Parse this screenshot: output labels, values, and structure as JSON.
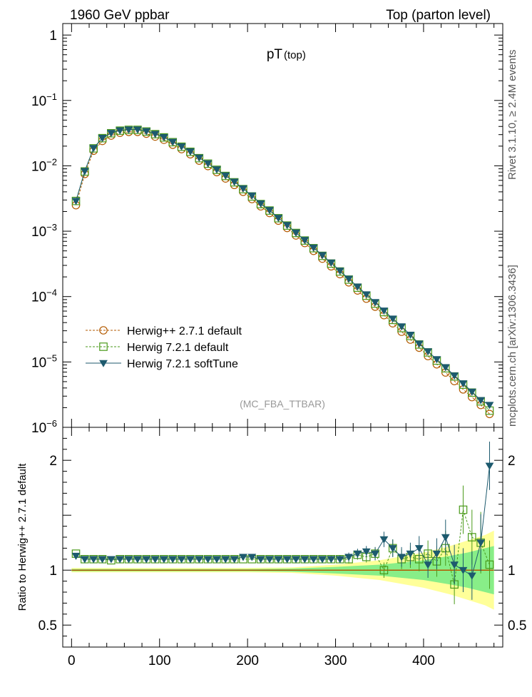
{
  "header": {
    "left": "1960 GeV ppbar",
    "right": "Top (parton level)",
    "side_top": "Rivet 3.1.10, ≥ 2.4M events",
    "side_bottom": "mcplots.cern.ch [arXiv:1306.3436]"
  },
  "chart_data": [
    {
      "type": "scatter",
      "title": "pT",
      "title_sub": "(top)",
      "watermark": "(MC_FBA_TTBAR)",
      "xlim": [
        -10,
        490
      ],
      "ylim": [
        1e-06,
        1.5
      ],
      "yscale": "log",
      "ytick_labels": [
        {
          "value": 1,
          "base": "1",
          "exp": ""
        },
        {
          "value": 0.1,
          "base": "10",
          "exp": "−1"
        },
        {
          "value": 0.01,
          "base": "10",
          "exp": "−2"
        },
        {
          "value": 0.001,
          "base": "10",
          "exp": "−3"
        },
        {
          "value": 0.0001,
          "base": "10",
          "exp": "−4"
        },
        {
          "value": 1e-05,
          "base": "10",
          "exp": "−5"
        },
        {
          "value": 1e-06,
          "base": "10",
          "exp": "−6"
        }
      ],
      "legend_position": "lower-left",
      "series": [
        {
          "name": "Herwig++ 2.7.1 default",
          "color": "#b35a00",
          "marker": "circle-open",
          "line": "dashed",
          "x": [
            5,
            15,
            25,
            35,
            45,
            55,
            65,
            75,
            85,
            95,
            105,
            115,
            125,
            135,
            145,
            155,
            165,
            175,
            185,
            195,
            205,
            215,
            225,
            235,
            245,
            255,
            265,
            275,
            285,
            295,
            305,
            315,
            325,
            335,
            345,
            355,
            365,
            375,
            385,
            395,
            405,
            415,
            425,
            435,
            445,
            455,
            465,
            475
          ],
          "y": [
            0.0025,
            0.0075,
            0.017,
            0.024,
            0.029,
            0.032,
            0.033,
            0.033,
            0.031,
            0.028,
            0.025,
            0.021,
            0.018,
            0.015,
            0.012,
            0.0099,
            0.008,
            0.0064,
            0.0051,
            0.004,
            0.0031,
            0.0024,
            0.0019,
            0.00145,
            0.00112,
            0.00086,
            0.00066,
            0.0005,
            0.00038,
            0.00029,
            0.00022,
            0.000165,
            0.000124,
            9.3e-05,
            7e-05,
            5.2e-05,
            3.9e-05,
            2.9e-05,
            2.2e-05,
            1.65e-05,
            1.23e-05,
            9.2e-06,
            6.9e-06,
            5.1e-06,
            3.8e-06,
            2.9e-06,
            2.2e-06,
            1.6e-06
          ]
        },
        {
          "name": "Herwig 7.2.1 default",
          "color": "#4a9a1a",
          "marker": "square-open",
          "line": "dashed",
          "x": [
            5,
            15,
            25,
            35,
            45,
            55,
            65,
            75,
            85,
            95,
            105,
            115,
            125,
            135,
            145,
            155,
            165,
            175,
            185,
            195,
            205,
            215,
            225,
            235,
            245,
            255,
            265,
            275,
            285,
            295,
            305,
            315,
            325,
            335,
            345,
            355,
            365,
            375,
            385,
            395,
            405,
            415,
            425,
            435,
            445,
            455,
            465,
            475
          ],
          "y": [
            0.0029,
            0.0082,
            0.0185,
            0.0265,
            0.0315,
            0.0345,
            0.0355,
            0.0355,
            0.0335,
            0.0305,
            0.0272,
            0.023,
            0.0196,
            0.0164,
            0.0131,
            0.0108,
            0.0087,
            0.007,
            0.0056,
            0.0044,
            0.0034,
            0.0026,
            0.00207,
            0.00158,
            0.00122,
            0.00094,
            0.00072,
            0.00055,
            0.00042,
            0.00032,
            0.000242,
            0.000182,
            0.000137,
            0.000103,
            7.8e-05,
            5.8e-05,
            4.4e-05,
            3.3e-05,
            2.5e-05,
            1.85e-05,
            1.4e-05,
            1.05e-05,
            8e-06,
            6e-06,
            4.5e-06,
            3.4e-06,
            2.5e-06,
            1.8e-06
          ]
        },
        {
          "name": "Herwig 7.2.1 softTune",
          "color": "#1d5a6e",
          "marker": "triangle-down",
          "line": "solid",
          "x": [
            5,
            15,
            25,
            35,
            45,
            55,
            65,
            75,
            85,
            95,
            105,
            115,
            125,
            135,
            145,
            155,
            165,
            175,
            185,
            195,
            205,
            215,
            225,
            235,
            245,
            255,
            265,
            275,
            285,
            295,
            305,
            315,
            325,
            335,
            345,
            355,
            365,
            375,
            385,
            395,
            405,
            415,
            425,
            435,
            445,
            455,
            465,
            475
          ],
          "y": [
            0.0029,
            0.0083,
            0.0187,
            0.0267,
            0.0318,
            0.0348,
            0.0358,
            0.0358,
            0.0338,
            0.0307,
            0.0274,
            0.0232,
            0.0198,
            0.0166,
            0.0133,
            0.0109,
            0.0088,
            0.0071,
            0.0057,
            0.0045,
            0.0035,
            0.00265,
            0.0021,
            0.0016,
            0.00124,
            0.00095,
            0.00073,
            0.00056,
            0.00043,
            0.00033,
            0.000248,
            0.000187,
            0.000142,
            0.000108,
            8.2e-05,
            6.1e-05,
            4.6e-05,
            3.5e-05,
            2.6e-05,
            1.9e-05,
            1.45e-05,
            1.1e-05,
            8.3e-06,
            6.2e-06,
            4.7e-06,
            3.5e-06,
            2.6e-06,
            2.2e-06
          ]
        }
      ]
    },
    {
      "type": "scatter",
      "ylabel": "Ratio to Herwig++ 2.7.1 default",
      "xlim": [
        -10,
        490
      ],
      "ylim": [
        0.3,
        2.3
      ],
      "x_ticks": [
        0,
        100,
        200,
        300,
        400
      ],
      "y_ticks": [
        0.5,
        1,
        2
      ],
      "reference_band": {
        "x": [
          0,
          50,
          100,
          150,
          200,
          250,
          300,
          350,
          400,
          430,
          450,
          470,
          480
        ],
        "green_half_width": [
          0.01,
          0.01,
          0.01,
          0.01,
          0.01,
          0.015,
          0.03,
          0.05,
          0.09,
          0.13,
          0.16,
          0.2,
          0.22
        ],
        "yellow_half_width": [
          0.02,
          0.02,
          0.02,
          0.02,
          0.02,
          0.025,
          0.05,
          0.09,
          0.16,
          0.22,
          0.27,
          0.32,
          0.36
        ]
      },
      "series": [
        {
          "name": "Herwig 7.2.1 default",
          "color": "#4a9a1a",
          "marker": "square-open",
          "x": [
            5,
            15,
            25,
            35,
            45,
            55,
            65,
            75,
            85,
            95,
            105,
            115,
            125,
            135,
            145,
            155,
            165,
            175,
            185,
            195,
            205,
            215,
            225,
            235,
            245,
            255,
            265,
            275,
            285,
            295,
            305,
            315,
            325,
            335,
            345,
            355,
            365,
            375,
            385,
            395,
            405,
            415,
            425,
            435,
            445,
            455,
            465,
            475
          ],
          "y": [
            1.15,
            1.1,
            1.1,
            1.1,
            1.09,
            1.1,
            1.1,
            1.1,
            1.1,
            1.1,
            1.1,
            1.1,
            1.1,
            1.1,
            1.1,
            1.1,
            1.1,
            1.1,
            1.1,
            1.1,
            1.1,
            1.1,
            1.1,
            1.1,
            1.1,
            1.1,
            1.1,
            1.1,
            1.1,
            1.1,
            1.1,
            1.1,
            1.14,
            1.12,
            1.15,
            1.0,
            1.2,
            1.1,
            1.12,
            1.1,
            1.15,
            1.08,
            1.2,
            0.87,
            1.55,
            1.3,
            1.25,
            1.05
          ],
          "err": [
            0.01,
            0.01,
            0.01,
            0.01,
            0.01,
            0.01,
            0.01,
            0.01,
            0.01,
            0.01,
            0.01,
            0.01,
            0.01,
            0.01,
            0.01,
            0.01,
            0.01,
            0.01,
            0.01,
            0.01,
            0.01,
            0.01,
            0.01,
            0.01,
            0.01,
            0.015,
            0.02,
            0.02,
            0.025,
            0.03,
            0.035,
            0.04,
            0.045,
            0.05,
            0.06,
            0.07,
            0.08,
            0.09,
            0.1,
            0.11,
            0.12,
            0.14,
            0.16,
            0.18,
            0.22,
            0.25,
            0.28,
            0.22
          ]
        },
        {
          "name": "Herwig 7.2.1 softTune",
          "color": "#1d5a6e",
          "marker": "triangle-down",
          "x": [
            5,
            15,
            25,
            35,
            45,
            55,
            65,
            75,
            85,
            95,
            105,
            115,
            125,
            135,
            145,
            155,
            165,
            175,
            185,
            195,
            205,
            215,
            225,
            235,
            245,
            255,
            265,
            275,
            285,
            295,
            305,
            315,
            325,
            335,
            345,
            355,
            365,
            375,
            385,
            395,
            405,
            415,
            425,
            435,
            445,
            455,
            465,
            475
          ],
          "y": [
            1.13,
            1.1,
            1.1,
            1.1,
            1.1,
            1.1,
            1.1,
            1.1,
            1.1,
            1.1,
            1.1,
            1.1,
            1.1,
            1.1,
            1.1,
            1.1,
            1.1,
            1.1,
            1.1,
            1.12,
            1.12,
            1.1,
            1.1,
            1.1,
            1.1,
            1.1,
            1.1,
            1.1,
            1.1,
            1.1,
            1.1,
            1.12,
            1.15,
            1.17,
            1.15,
            1.28,
            1.2,
            1.12,
            1.15,
            1.2,
            1.05,
            1.15,
            1.3,
            1.05,
            1.0,
            0.95,
            1.25,
            1.95
          ],
          "err": [
            0.01,
            0.01,
            0.01,
            0.01,
            0.01,
            0.01,
            0.01,
            0.01,
            0.01,
            0.01,
            0.01,
            0.01,
            0.01,
            0.01,
            0.01,
            0.01,
            0.01,
            0.01,
            0.01,
            0.01,
            0.01,
            0.01,
            0.01,
            0.01,
            0.01,
            0.015,
            0.02,
            0.02,
            0.025,
            0.03,
            0.035,
            0.04,
            0.045,
            0.05,
            0.06,
            0.07,
            0.08,
            0.09,
            0.1,
            0.11,
            0.12,
            0.14,
            0.16,
            0.18,
            0.2,
            0.22,
            0.26,
            0.22
          ]
        }
      ]
    }
  ]
}
